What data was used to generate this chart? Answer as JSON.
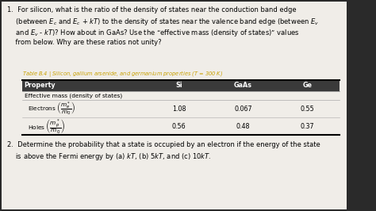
{
  "bg_color": "#2a2a2a",
  "content_bg": "#f0ede8",
  "table_title_color": "#c8a000",
  "header_bg": "#3a3a3a",
  "header_text_color": "#ffffff",
  "question1_lines": [
    "1.  For silicon, what is the ratio of the density of states near the conduction band edge",
    "    (between $E_c$ and $E_c$ + $kT$) to the density of states near the valence band edge (between $E_v$",
    "    and $E_v$ - $kT$)? How about in GaAs? Use the “effective mass (density of states)” values",
    "    from below. Why are these ratios not unity?"
  ],
  "table_title": "Table B.4 | Silicon, gallium arsenide, and germanium properties ($T$ = 300 K)",
  "col_headers": [
    "Property",
    "Si",
    "GaAs",
    "Ge"
  ],
  "row_group": "Effective mass (density of states)",
  "electrons_label": "Electrons $\\left(\\dfrac{m_e^*}{m_0}\\right)$",
  "holes_label": "Holes $\\left(\\dfrac{m_p^*}{m_0}\\right)$",
  "electrons": [
    "1.08",
    "0.067",
    "0.55"
  ],
  "holes": [
    "0.56",
    "0.48",
    "0.37"
  ],
  "question2_lines": [
    "2.  Determine the probability that a state is occupied by an electron if the energy of the state",
    "    is above the Fermi energy by (a) $kT$, (b) 5$kT$, and (c) 10$kT$."
  ],
  "figsize": [
    4.74,
    2.66
  ],
  "dpi": 100,
  "fs_main": 6.0,
  "fs_table": 5.8,
  "fs_title": 4.8
}
